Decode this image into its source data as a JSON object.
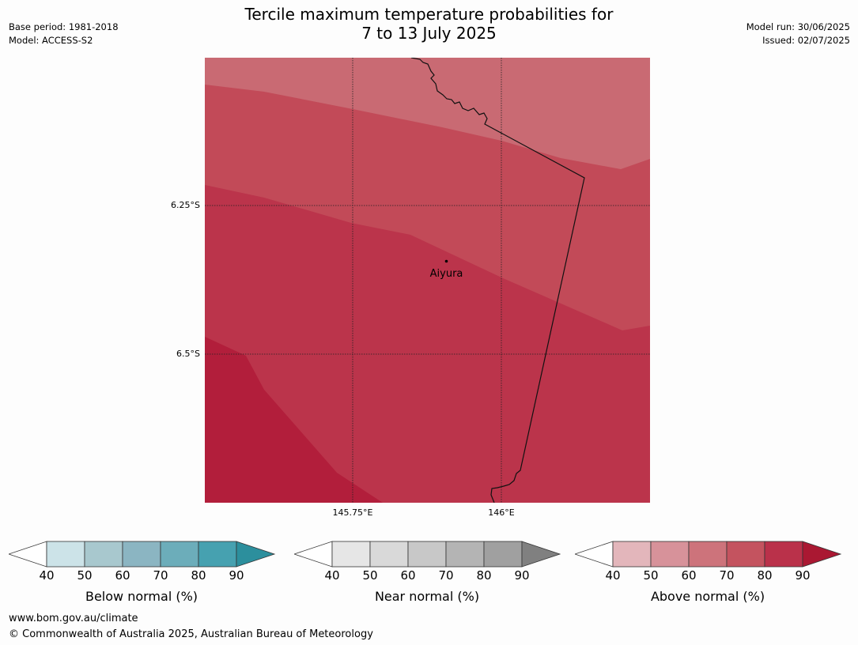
{
  "title_line1": "Tercile maximum temperature probabilities for",
  "title_line2": "7 to 13 July 2025",
  "meta_left": {
    "base_period": "Base period: 1981-2018",
    "model": "Model: ACCESS-S2"
  },
  "meta_right": {
    "model_run": "Model run: 30/06/2025",
    "issued": "Issued: 02/07/2025"
  },
  "map": {
    "lat_labels": [
      "6.25°S",
      "6.5°S"
    ],
    "lon_labels": [
      "145.75°E",
      "146°E"
    ],
    "place": "Aiyura",
    "colors": {
      "band_60_70": "#c96a73",
      "band_70_80": "#c24a58",
      "band_80_90": "#bb344b",
      "band_90": "#b21e3b",
      "border": "#111111",
      "grid": "#222222"
    }
  },
  "legends": [
    {
      "title": "Below normal (%)",
      "ticks": [
        "40",
        "50",
        "60",
        "70",
        "80",
        "90"
      ],
      "colors": [
        "#ffffff",
        "#cce3e8",
        "#a8c8ce",
        "#8bb5c2",
        "#6cadba",
        "#46a1b0",
        "#2c8f9d"
      ]
    },
    {
      "title": "Near normal (%)",
      "ticks": [
        "40",
        "50",
        "60",
        "70",
        "80",
        "90"
      ],
      "colors": [
        "#ffffff",
        "#e6e6e6",
        "#d9d9d9",
        "#c8c8c8",
        "#b4b4b4",
        "#a0a0a0",
        "#808080"
      ]
    },
    {
      "title": "Above normal (%)",
      "ticks": [
        "40",
        "50",
        "60",
        "70",
        "80",
        "90"
      ],
      "colors": [
        "#ffffff",
        "#e3b6bb",
        "#d7929a",
        "#cd737b",
        "#c4535f",
        "#ba314a",
        "#aa1832"
      ]
    }
  ],
  "footer": {
    "url": "www.bom.gov.au/climate",
    "copyright": "© Commonwealth of Australia 2025, Australian Bureau of Meteorology"
  }
}
